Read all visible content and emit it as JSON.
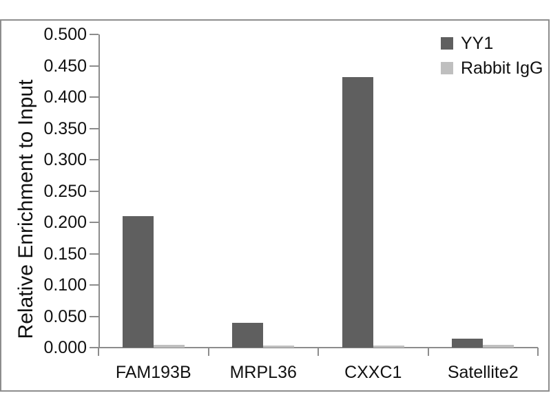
{
  "figure": {
    "background_color": "#ffffff",
    "frame_border_color": "#8d8d8d",
    "axis_line_color": "#8c8c8c",
    "text_color": "#111111"
  },
  "chart_data": {
    "type": "bar",
    "title": "",
    "xlabel": "",
    "ylabel": "Relative Enrichment to Input",
    "categories": [
      "FAM193B",
      "MRPL36",
      "CXXC1",
      "Satellite2"
    ],
    "series": [
      {
        "name": "YY1",
        "color": "#5f5f5f",
        "values": [
          0.21,
          0.04,
          0.432,
          0.014
        ]
      },
      {
        "name": "Rabbit IgG",
        "color": "#bfbfbf",
        "values": [
          0.004,
          0.003,
          0.003,
          0.004
        ]
      }
    ],
    "ylim": [
      0.0,
      0.5
    ],
    "ytick_step": 0.05,
    "ytick_labels": [
      "0.000",
      "0.050",
      "0.100",
      "0.150",
      "0.200",
      "0.250",
      "0.300",
      "0.350",
      "0.400",
      "0.450",
      "0.500"
    ],
    "grid": false,
    "legend_position": "top-right"
  }
}
